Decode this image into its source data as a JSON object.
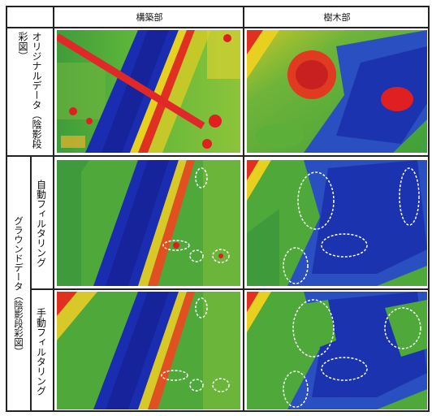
{
  "header": {
    "col1": "構築部",
    "col2": "樹木部"
  },
  "rows": {
    "original_label": "オリジナルデータ（陰影段彩図）",
    "ground_label": "グラウンドデータ（陰影段彩図）",
    "auto_label": "自動フィルタリング",
    "manual_label": "手動フィルタリング"
  },
  "colors": {
    "water": "#1a2db0",
    "ground_green": "#4fae3a",
    "high_red": "#e02020",
    "yellow": "#d8d820",
    "annotation": "#ffffff"
  }
}
